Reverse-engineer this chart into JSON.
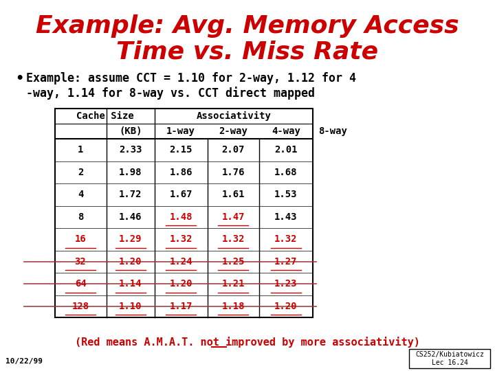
{
  "title_line1": "Example: Avg. Memory Access",
  "title_line2": "Time vs. Miss Rate",
  "title_color": "#CC0000",
  "bullet_line1": "Example: assume CCT = 1.10 for 2-way, 1.12 for 4",
  "bullet_line2": "-way, 1.14 for 8-way vs. CCT direct mapped",
  "table_col_labels": [
    "Cache Size",
    "(KB)",
    "1-way",
    "2-way",
    "4-way",
    "8-way"
  ],
  "table_data": [
    [
      "1",
      "2.33",
      "2.15",
      "2.07",
      "2.01",
      ""
    ],
    [
      "2",
      "1.98",
      "1.86",
      "1.76",
      "1.68",
      ""
    ],
    [
      "4",
      "1.72",
      "1.67",
      "1.61",
      "1.53",
      ""
    ],
    [
      "8",
      "1.46",
      "1.48",
      "1.47",
      "1.43",
      ""
    ],
    [
      "16",
      "1.29",
      "1.32",
      "1.32",
      "1.32",
      ""
    ],
    [
      "32",
      "1.20",
      "1.24",
      "1.25",
      "1.27",
      ""
    ],
    [
      "64",
      "1.14",
      "1.20",
      "1.21",
      "1.23",
      ""
    ],
    [
      "128",
      "1.10",
      "1.17",
      "1.18",
      "1.20",
      ""
    ]
  ],
  "red_rows": [
    4,
    5,
    6,
    7
  ],
  "red_underline_cells": [
    [
      3,
      2
    ],
    [
      3,
      3
    ],
    [
      4,
      0
    ],
    [
      4,
      1
    ],
    [
      4,
      2
    ],
    [
      4,
      3
    ],
    [
      4,
      4
    ],
    [
      5,
      0
    ],
    [
      5,
      1
    ],
    [
      5,
      2
    ],
    [
      5,
      3
    ],
    [
      5,
      4
    ],
    [
      6,
      0
    ],
    [
      6,
      1
    ],
    [
      6,
      2
    ],
    [
      6,
      3
    ],
    [
      6,
      4
    ],
    [
      7,
      0
    ],
    [
      7,
      1
    ],
    [
      7,
      2
    ],
    [
      7,
      3
    ],
    [
      7,
      4
    ]
  ],
  "red_strike_rows": [
    5,
    6,
    7
  ],
  "footer_text1": "(Red means A.M.A.T. ",
  "footer_text2": "not",
  "footer_text3": " improved by more associativity)",
  "date_text": "10/22/99",
  "corner_text": "CS252/Kubiatowicz\nLec 16.24",
  "bg_color": "#FFFFFF",
  "text_color": "#000000",
  "red_color": "#CC0000",
  "dark_red_color": "#993333"
}
